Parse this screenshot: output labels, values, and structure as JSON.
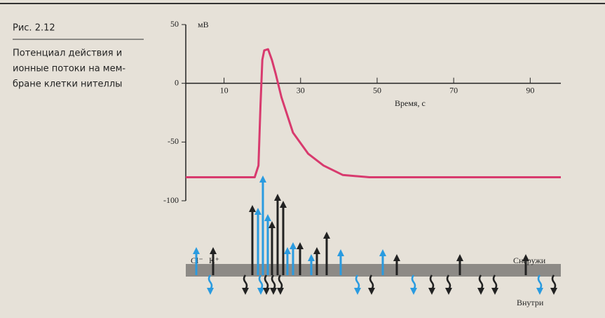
{
  "chart_data": {
    "type": "line",
    "figure_label": "Рис. 2.12",
    "caption": [
      "Потенциал действия и",
      "ионные потоки на мем-",
      "бране клетки нителлы"
    ],
    "y_label": "мВ",
    "x_label": "Время, с",
    "x": [
      0,
      18,
      19,
      19.5,
      20,
      20.5,
      21.5,
      22.5,
      23.5,
      25,
      28,
      32,
      36,
      41,
      48,
      98
    ],
    "values": [
      -80,
      -80,
      -70,
      -20,
      20,
      28,
      29,
      20,
      8,
      -12,
      -42,
      -60,
      -70,
      -78,
      -80,
      -80
    ],
    "color": "#d83a6e",
    "xlim": [
      0,
      98
    ],
    "ylim": [
      -100,
      50
    ],
    "xticks": [
      10,
      30,
      50,
      70,
      90
    ],
    "yticks": [
      -100,
      -50,
      0,
      50
    ]
  },
  "diagram": {
    "ion_labels": [
      "Cl⁻",
      "K⁺"
    ],
    "outside": "Снаружи",
    "inside": "Внутри"
  }
}
